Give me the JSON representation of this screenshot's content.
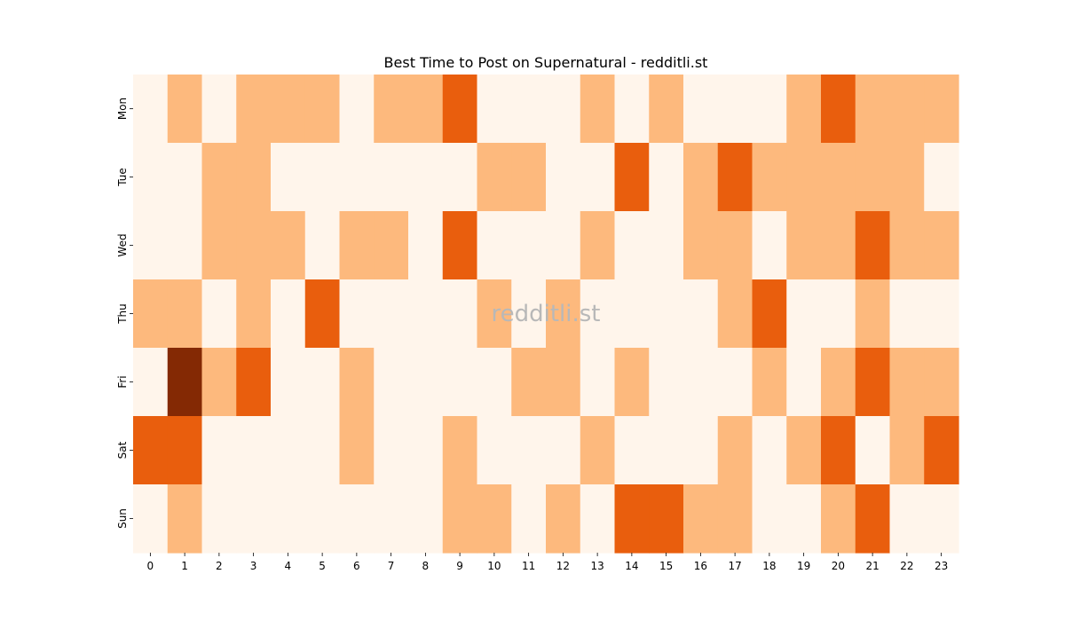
{
  "chart_data": {
    "type": "heatmap",
    "title": "Best Time to Post on Supernatural - redditli.st",
    "watermark": "redditli.st",
    "x_categories": [
      "0",
      "1",
      "2",
      "3",
      "4",
      "5",
      "6",
      "7",
      "8",
      "9",
      "10",
      "11",
      "12",
      "13",
      "14",
      "15",
      "16",
      "17",
      "18",
      "19",
      "20",
      "21",
      "22",
      "23"
    ],
    "y_categories": [
      "Mon",
      "Tue",
      "Wed",
      "Thu",
      "Fri",
      "Sat",
      "Sun"
    ],
    "values": [
      [
        0,
        1,
        0,
        1,
        1,
        1,
        0,
        1,
        1,
        2,
        0,
        0,
        0,
        1,
        0,
        1,
        0,
        0,
        0,
        1,
        2,
        1,
        1,
        1
      ],
      [
        0,
        0,
        1,
        1,
        0,
        0,
        0,
        0,
        0,
        0,
        1,
        1,
        0,
        0,
        2,
        0,
        1,
        2,
        1,
        1,
        1,
        1,
        1,
        0
      ],
      [
        0,
        0,
        1,
        1,
        1,
        0,
        1,
        1,
        0,
        2,
        0,
        0,
        0,
        1,
        0,
        0,
        1,
        1,
        0,
        1,
        1,
        2,
        1,
        1
      ],
      [
        1,
        1,
        0,
        1,
        0,
        2,
        0,
        0,
        0,
        0,
        1,
        0,
        1,
        0,
        0,
        0,
        0,
        1,
        2,
        0,
        0,
        1,
        0,
        0
      ],
      [
        0,
        3,
        1,
        2,
        0,
        0,
        1,
        0,
        0,
        0,
        0,
        1,
        1,
        0,
        1,
        0,
        0,
        0,
        1,
        0,
        1,
        2,
        1,
        1
      ],
      [
        2,
        2,
        0,
        0,
        0,
        0,
        1,
        0,
        0,
        1,
        0,
        0,
        0,
        1,
        0,
        0,
        0,
        1,
        0,
        1,
        2,
        0,
        1,
        2
      ],
      [
        0,
        1,
        0,
        0,
        0,
        0,
        0,
        0,
        0,
        1,
        1,
        0,
        1,
        0,
        2,
        2,
        1,
        1,
        0,
        0,
        1,
        2,
        0,
        0
      ]
    ],
    "color_scale": [
      "#fff5eb",
      "#fdb97d",
      "#e95e0d",
      "#842904"
    ],
    "colorbar": false,
    "grid": false
  }
}
